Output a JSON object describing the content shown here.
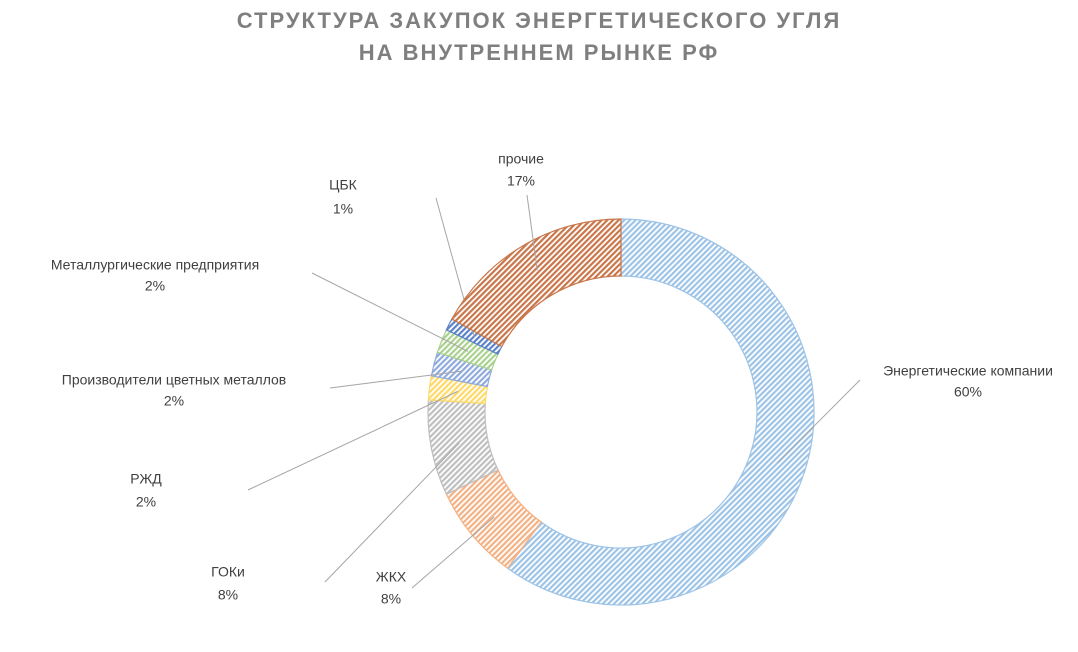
{
  "chart_data": {
    "type": "donut",
    "title": [
      "СТРУКТУРА ЗАКУПОК ЭНЕРГЕТИЧЕСКОГО УГЛЯ",
      "НА ВНУТРЕННЕМ РЫНКЕ РФ"
    ],
    "categories": [
      "Энергетические компании",
      "ЖКХ",
      "ГОКи",
      "РЖД",
      "Производители цветных металлов",
      "Металлургические предприятия",
      "ЦБК",
      "прочие"
    ],
    "values": [
      60,
      8,
      8,
      2,
      2,
      2,
      1,
      17
    ],
    "value_labels": [
      "60%",
      "8%",
      "8%",
      "2%",
      "2%",
      "2%",
      "1%",
      "17%"
    ],
    "colors": [
      "#9dc3e6",
      "#f4b183",
      "#bfbfbf",
      "#ffd966",
      "#8faadc",
      "#a9d18e",
      "#5b82c8",
      "#c8764a"
    ]
  }
}
